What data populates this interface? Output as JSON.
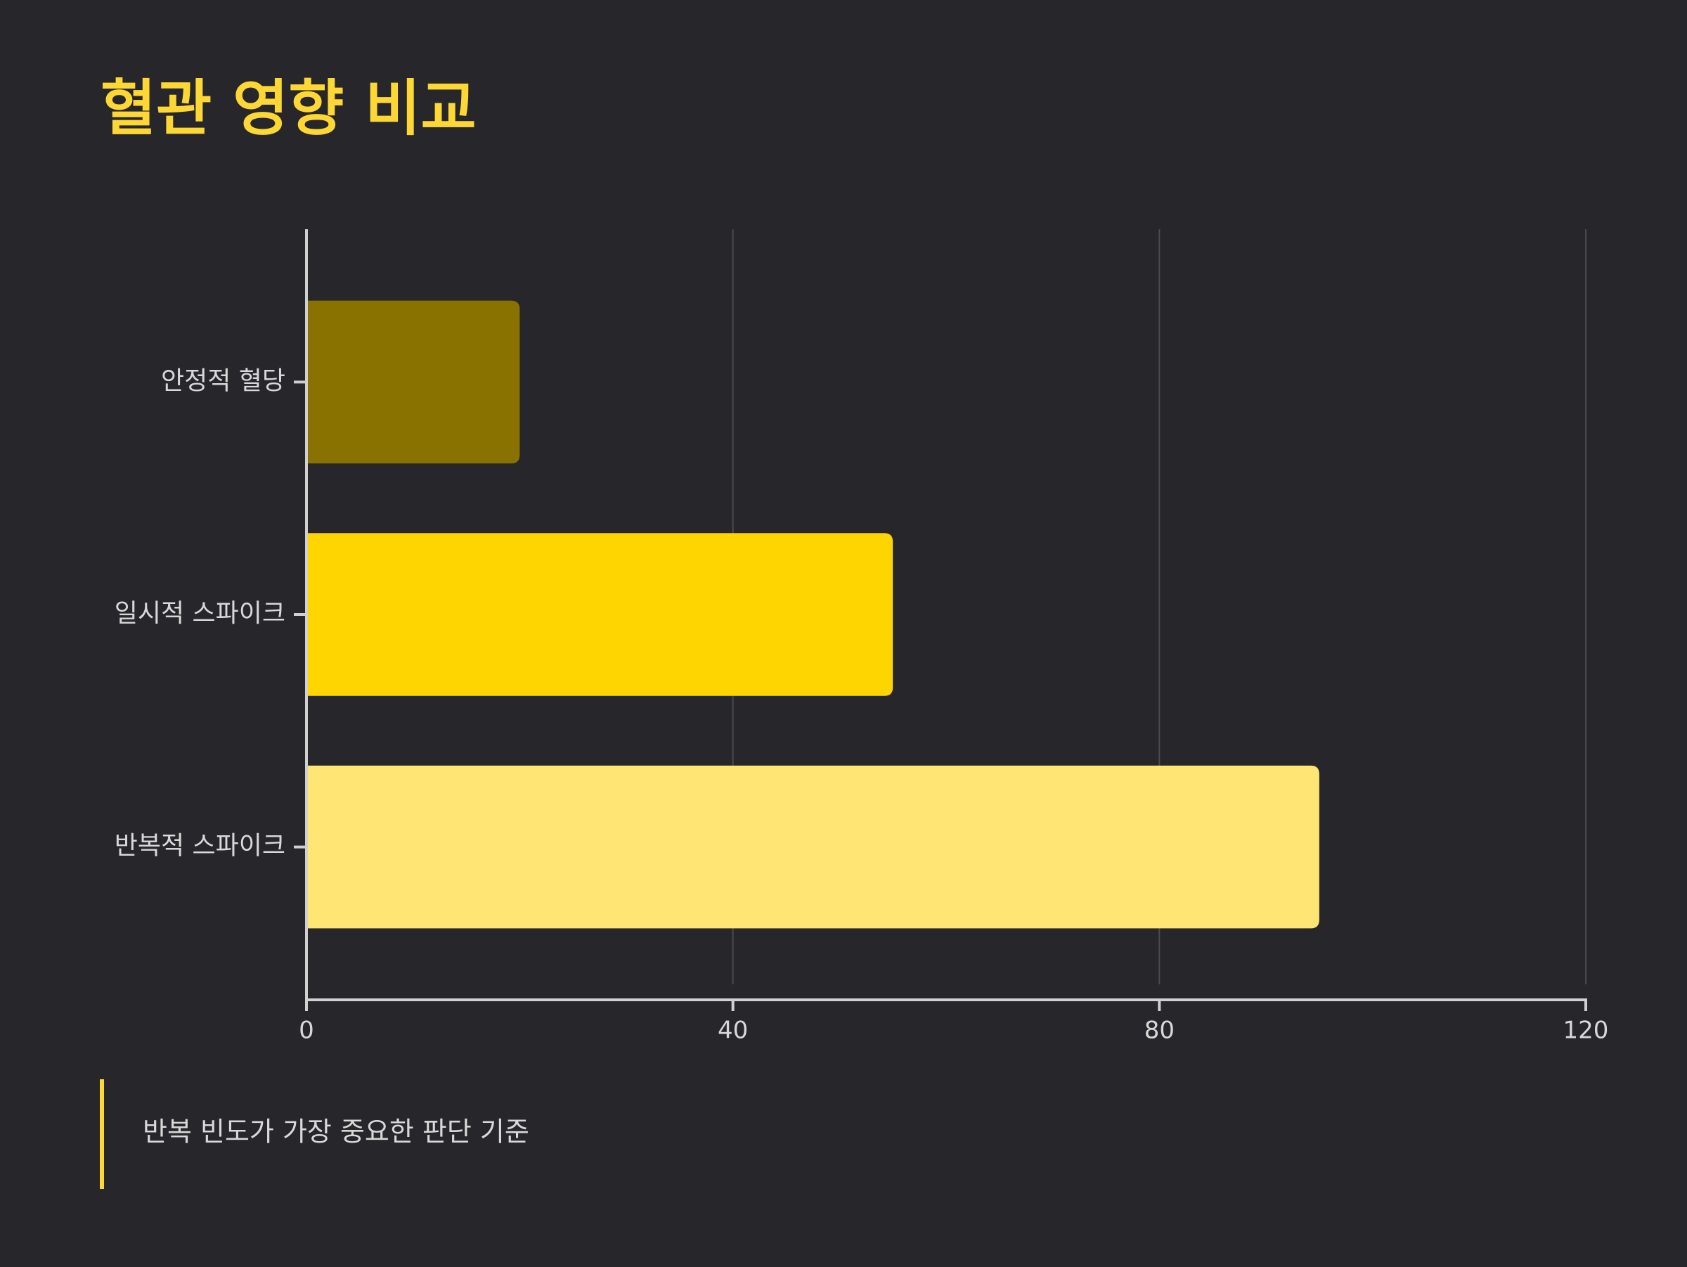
{
  "chart_data": {
    "type": "bar",
    "orientation": "horizontal",
    "title": "혈관 영향 비교",
    "categories": [
      "안정적 혈당",
      "일시적 스파이크",
      "반복적 스파이크"
    ],
    "values": [
      20,
      55,
      95
    ],
    "colors": [
      "#8a7200",
      "#ffd500",
      "#ffe573"
    ],
    "xlim": [
      0,
      120
    ],
    "xticks": [
      0,
      40,
      80,
      120
    ],
    "grid": true,
    "annotation": "반복 빈도가 가장 중요한 판단 기준"
  }
}
